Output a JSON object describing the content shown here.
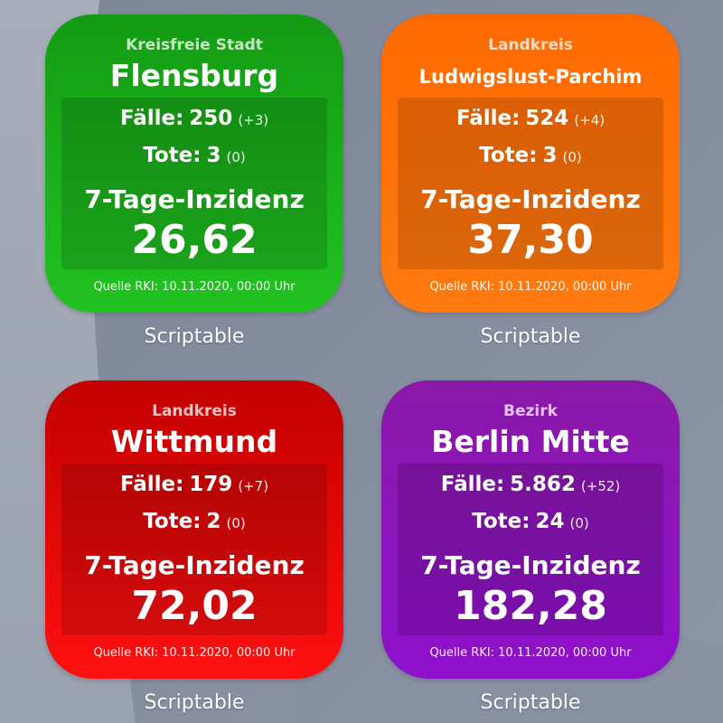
{
  "colors": {
    "green": "#1cb41c",
    "orange": "#ff6e00",
    "red": "#e00a0a",
    "purple": "#8c14b8"
  },
  "widgets": [
    {
      "theme": "green",
      "region_type": "Kreisfreie Stadt",
      "region_name": "Flensburg",
      "cases_label": "Fälle:",
      "cases_value": "250",
      "cases_delta": "(+3)",
      "deaths_label": "Tote:",
      "deaths_value": "3",
      "deaths_delta": "(0)",
      "incidence_label": "7-Tage-Inzidenz",
      "incidence_value": "26,62",
      "source": "Quelle RKI: 10.11.2020, 00:00 Uhr",
      "app_name": "Scriptable"
    },
    {
      "theme": "orange",
      "region_type": "Landkreis",
      "region_name": "Ludwigslust-Parchim",
      "cases_label": "Fälle:",
      "cases_value": "524",
      "cases_delta": "(+4)",
      "deaths_label": "Tote:",
      "deaths_value": "3",
      "deaths_delta": "(0)",
      "incidence_label": "7-Tage-Inzidenz",
      "incidence_value": "37,30",
      "source": "Quelle RKI: 10.11.2020, 00:00 Uhr",
      "app_name": "Scriptable"
    },
    {
      "theme": "red",
      "region_type": "Landkreis",
      "region_name": "Wittmund",
      "cases_label": "Fälle:",
      "cases_value": "179",
      "cases_delta": "(+7)",
      "deaths_label": "Tote:",
      "deaths_value": "2",
      "deaths_delta": "(0)",
      "incidence_label": "7-Tage-Inzidenz",
      "incidence_value": "72,02",
      "source": "Quelle RKI: 10.11.2020, 00:00 Uhr",
      "app_name": "Scriptable"
    },
    {
      "theme": "purple",
      "region_type": "Bezirk",
      "region_name": "Berlin Mitte",
      "cases_label": "Fälle:",
      "cases_value": "5.862",
      "cases_delta": "(+52)",
      "deaths_label": "Tote:",
      "deaths_value": "24",
      "deaths_delta": "(0)",
      "incidence_label": "7-Tage-Inzidenz",
      "incidence_value": "182,28",
      "source": "Quelle RKI: 10.11.2020, 00:00 Uhr",
      "app_name": "Scriptable"
    }
  ]
}
